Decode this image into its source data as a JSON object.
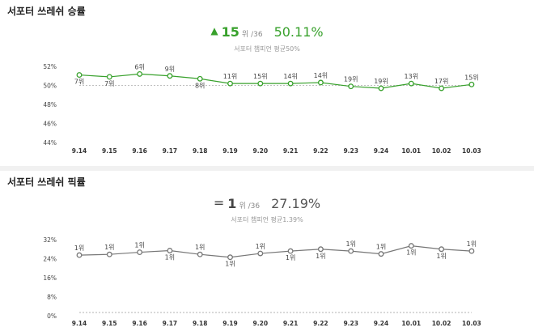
{
  "winrate": {
    "title": "서포터 쓰레쉬 승률",
    "trend_icon": "triangle-up-icon",
    "rank": "15",
    "rank_suffix": "위 /36",
    "value": "50.11%",
    "avg_text": "서포터 챔피언 평균50%"
  },
  "pickrate": {
    "title": "서포터 쓰레쉬 픽률",
    "trend_icon": "equals-icon",
    "rank": "1",
    "rank_suffix": "위 /36",
    "value": "27.19%",
    "avg_text": "서포터 챔피언 평균1.39%"
  },
  "colors": {
    "up": "#38a12c",
    "neutral": "#777777"
  },
  "chart_data": [
    {
      "type": "line",
      "title": "서포터 쓰레쉬 승률",
      "x": [
        "9.14",
        "9.15",
        "9.16",
        "9.17",
        "9.18",
        "9.19",
        "9.20",
        "9.21",
        "9.22",
        "9.23",
        "9.24",
        "10.01",
        "10.02",
        "10.03"
      ],
      "yticks": [
        "52%",
        "50%",
        "48%",
        "46%",
        "44%"
      ],
      "ylim": [
        44,
        52
      ],
      "grid": false,
      "reference_line": 50,
      "series": [
        {
          "color": "#38a12c",
          "values": [
            51.1,
            50.9,
            51.2,
            51.0,
            50.7,
            50.2,
            50.2,
            50.2,
            50.3,
            49.9,
            49.7,
            50.2,
            49.7,
            50.1
          ],
          "labels": [
            "7위",
            "7위",
            "6위",
            "9위",
            "8위",
            "11위",
            "15위",
            "14위",
            "14위",
            "19위",
            "19위",
            "13위",
            "17위",
            "15위"
          ]
        }
      ]
    },
    {
      "type": "line",
      "title": "서포터 쓰레쉬 픽률",
      "x": [
        "9.14",
        "9.15",
        "9.16",
        "9.17",
        "9.18",
        "9.19",
        "9.20",
        "9.21",
        "9.22",
        "9.23",
        "9.24",
        "10.01",
        "10.02",
        "10.03"
      ],
      "yticks": [
        "32%",
        "24%",
        "16%",
        "8%",
        "0%"
      ],
      "ylim": [
        0,
        32
      ],
      "grid": false,
      "reference_line": 1.39,
      "series": [
        {
          "color": "#777777",
          "values": [
            25.5,
            25.8,
            26.7,
            27.4,
            25.8,
            24.6,
            26.2,
            27.2,
            28.0,
            27.2,
            26.0,
            29.4,
            28.0,
            27.2
          ],
          "labels": [
            "1위",
            "1위",
            "1위",
            "1위",
            "1위",
            "1위",
            "1위",
            "1위",
            "1위",
            "1위",
            "1위",
            "1위",
            "1위",
            "1위"
          ]
        }
      ]
    }
  ]
}
